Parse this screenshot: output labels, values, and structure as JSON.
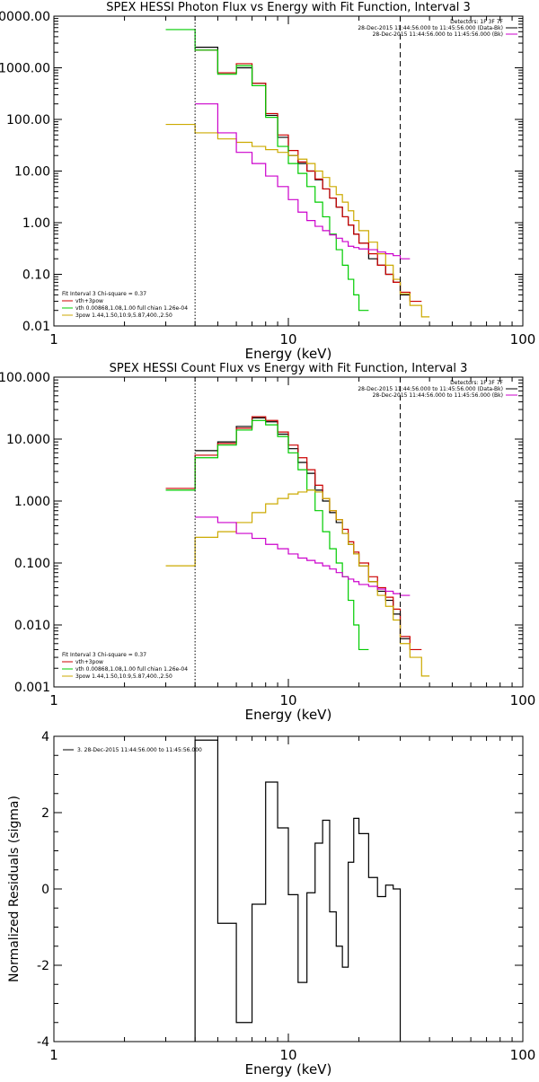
{
  "chart_data": [
    {
      "type": "line",
      "title": "SPEX HESSI Photon Flux vs Energy with Fit Function, Interval 3",
      "xlabel": "Energy (keV)",
      "ylabel": "",
      "xscale": "log",
      "yscale": "log",
      "xlim": [
        1,
        100
      ],
      "ylim": [
        0.01,
        10000
      ],
      "x_tick_labels": [
        "1",
        "10",
        "100"
      ],
      "y_tick_labels": [
        "0.01",
        "0.10",
        "1.00",
        "10.00",
        "100.00",
        "1000.00",
        "10000.00"
      ],
      "legend_top": [
        "Detectors: 1F 3F 7F",
        "28-Dec-2015 11:44:56.000 to 11:45:56.000 (Data-Bk)",
        "28-Dec-2015 11:44:56.000 to 11:45:56.000 (Bk)"
      ],
      "legend_top_colors": [
        "#000000",
        "#000000",
        "#cc00cc"
      ],
      "legend_bottom": [
        "Fit Interval 3   Chi-square = 0.37",
        "vth+3pow",
        "vth 0.00868,1.08,1.00  full chian 1.26e-04",
        "3pow 1.44,1.50,10.9,5.87,400.,2.50"
      ],
      "legend_bottom_colors": [
        "",
        "#cc0000",
        "#00cc00",
        "#ccaa00"
      ],
      "vlines": [
        {
          "x": 4.0,
          "style": "dotted"
        },
        {
          "x": 30,
          "style": "dashed"
        }
      ],
      "bin_edges": [
        3,
        4,
        5,
        6,
        7,
        8,
        9,
        10,
        11,
        12,
        13,
        14,
        15,
        16,
        17,
        18,
        19,
        20,
        22,
        24,
        26,
        28,
        30,
        33,
        37,
        40
      ],
      "series": [
        {
          "color": "#000000",
          "values": [
            null,
            2500,
            800,
            1000,
            500,
            120,
            45,
            20,
            14,
            10,
            6.8,
            4.5,
            3.0,
            2.0,
            1.3,
            0.9,
            0.6,
            0.4,
            0.2,
            0.15,
            0.1,
            0.07,
            0.04,
            null,
            null
          ]
        },
        {
          "color": "#cc0000",
          "values": [
            null,
            2200,
            800,
            1200,
            500,
            130,
            50,
            25,
            15,
            10,
            7,
            4.5,
            3.0,
            2.0,
            1.3,
            0.9,
            0.6,
            0.4,
            0.25,
            0.15,
            0.1,
            0.07,
            0.045,
            0.03,
            null
          ]
        },
        {
          "color": "#00cc00",
          "values": [
            5500,
            2200,
            750,
            1100,
            450,
            110,
            30,
            14,
            9,
            5,
            2.5,
            1.3,
            0.6,
            0.3,
            0.15,
            0.08,
            0.04,
            0.02,
            null,
            null,
            null,
            null,
            null,
            null,
            null
          ]
        },
        {
          "color": "#ccaa00",
          "values": [
            80,
            55,
            42,
            36,
            30,
            26,
            23,
            20,
            17,
            14,
            10,
            7.5,
            5.0,
            3.5,
            2.5,
            1.7,
            1.1,
            0.7,
            0.42,
            0.25,
            0.15,
            0.08,
            0.042,
            0.025,
            0.015
          ]
        },
        {
          "color": "#cc00cc",
          "values": [
            null,
            200,
            55,
            23,
            14,
            8,
            5,
            2.8,
            1.6,
            1.1,
            0.85,
            0.7,
            0.58,
            0.5,
            0.43,
            0.35,
            0.33,
            0.31,
            0.3,
            0.27,
            0.25,
            0.23,
            0.2,
            null,
            null
          ]
        }
      ]
    },
    {
      "type": "line",
      "title": "SPEX HESSI Count Flux vs Energy with Fit Function, Interval 3",
      "xlabel": "Energy (keV)",
      "ylabel": "",
      "xscale": "log",
      "yscale": "log",
      "xlim": [
        1,
        100
      ],
      "ylim": [
        0.001,
        100
      ],
      "x_tick_labels": [
        "1",
        "10",
        "100"
      ],
      "y_tick_labels": [
        "0.001",
        "0.010",
        "0.100",
        "1.000",
        "10.000",
        "100.000"
      ],
      "legend_top": [
        "Detectors: 1F 3F 7F",
        "28-Dec-2015 11:44:56.000 to 11:45:56.000 (Data-Bk)",
        "28-Dec-2015 11:44:56.000 to 11:45:56.000 (Bk)"
      ],
      "legend_top_colors": [
        "#000000",
        "#000000",
        "#cc00cc"
      ],
      "legend_bottom": [
        "Fit Interval 3   Chi-square = 0.37",
        "vth+3pow",
        "vth 0.00868,1.08,1.00  full chian 1.26e-04",
        "3pow 1.44,1.50,10.9,5.87,400.,2.50"
      ],
      "legend_bottom_colors": [
        "",
        "#cc0000",
        "#00cc00",
        "#ccaa00"
      ],
      "vlines": [
        {
          "x": 4.0,
          "style": "dotted"
        },
        {
          "x": 30,
          "style": "dashed"
        }
      ],
      "bin_edges": [
        3,
        4,
        5,
        6,
        7,
        8,
        9,
        10,
        11,
        12,
        13,
        14,
        15,
        16,
        17,
        18,
        19,
        20,
        22,
        24,
        26,
        28,
        30,
        33,
        37,
        40
      ],
      "series": [
        {
          "color": "#000000",
          "values": [
            null,
            6.5,
            9,
            16,
            22,
            19,
            12,
            7,
            4.2,
            2.8,
            1.5,
            1.0,
            0.65,
            0.45,
            0.3,
            0.2,
            0.14,
            0.09,
            0.05,
            0.035,
            0.025,
            0.015,
            0.006,
            null,
            null
          ]
        },
        {
          "color": "#cc0000",
          "values": [
            1.6,
            5.5,
            8.5,
            15,
            23,
            20,
            13,
            8,
            5,
            3.2,
            1.8,
            1.1,
            0.7,
            0.5,
            0.35,
            0.22,
            0.15,
            0.1,
            0.06,
            0.04,
            0.028,
            0.018,
            0.0065,
            0.004,
            null
          ]
        },
        {
          "color": "#00cc00",
          "values": [
            1.5,
            5,
            8,
            14,
            20,
            17,
            11,
            6,
            3.2,
            1.5,
            0.7,
            0.32,
            0.17,
            0.1,
            0.06,
            0.025,
            0.01,
            0.004,
            null,
            null,
            null,
            null,
            null,
            null,
            null
          ]
        },
        {
          "color": "#ccaa00",
          "values": [
            0.09,
            0.26,
            0.32,
            0.45,
            0.65,
            0.9,
            1.1,
            1.3,
            1.4,
            1.5,
            1.4,
            1.1,
            0.7,
            0.5,
            0.3,
            0.2,
            0.14,
            0.09,
            0.05,
            0.03,
            0.02,
            0.012,
            0.005,
            0.003,
            0.0015
          ]
        },
        {
          "color": "#cc00cc",
          "values": [
            null,
            0.55,
            0.45,
            0.3,
            0.25,
            0.2,
            0.17,
            0.14,
            0.12,
            0.11,
            0.1,
            0.09,
            0.08,
            0.07,
            0.06,
            0.055,
            0.05,
            0.045,
            0.042,
            0.038,
            0.035,
            0.032,
            0.03,
            null,
            null
          ]
        }
      ]
    },
    {
      "type": "line",
      "title": "",
      "xlabel": "Energy (keV)",
      "ylabel": "Normalized Residuals (sigma)",
      "xscale": "log",
      "yscale": "linear",
      "xlim": [
        1,
        100
      ],
      "ylim": [
        -4,
        4
      ],
      "x_tick_labels": [
        "1",
        "10",
        "100"
      ],
      "y_tick_labels": [
        "-4",
        "-2",
        "0",
        "2",
        "4"
      ],
      "y_ticks": [
        -4,
        -2,
        0,
        2,
        4
      ],
      "legend": "3. 28-Dec-2015 11:44:56.000 to 11:45:56.000",
      "bin_edges": [
        4,
        5,
        6,
        7,
        8,
        9,
        10,
        11,
        12,
        13,
        14,
        15,
        16,
        17,
        18,
        19,
        20,
        22,
        24,
        26,
        28,
        30
      ],
      "series": [
        {
          "color": "#000000",
          "values": [
            3.9,
            -0.9,
            -3.5,
            -0.4,
            2.8,
            1.6,
            -0.15,
            -2.45,
            -0.1,
            1.2,
            1.8,
            -0.6,
            -1.5,
            -2.05,
            0.7,
            1.85,
            1.45,
            0.3,
            -0.2,
            0.1,
            0.0
          ]
        }
      ]
    }
  ]
}
